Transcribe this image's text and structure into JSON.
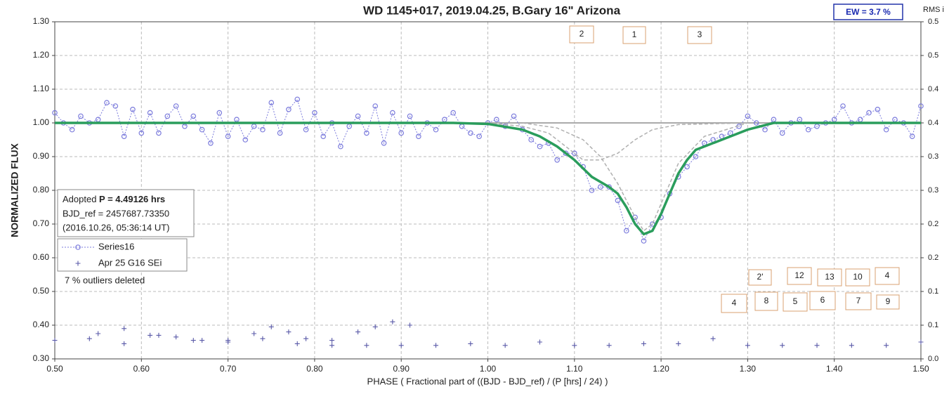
{
  "chart_data": {
    "type": "scatter",
    "title": "WD 1145+017, 2019.04.25, B.Gary 16\" Arizona",
    "ew_label": "EW =  3.7 %",
    "y2_title": "RMS i",
    "x_label": "PHASE ( Fractional part of ((BJD - BJD_ref) / (P [hrs] / 24) )",
    "y_label": "NORMALIZED FLUX",
    "info": {
      "prefix": "Adopted ",
      "period": "P = 4.49126 hrs",
      "bjd_ref": "BJD_ref = 2457687.73350",
      "date": "(2016.10.26, 05:36:14 UT)"
    },
    "outliers_note": "7 % outliers deleted",
    "annotations": [
      "2",
      "1",
      "3",
      "2'",
      "12",
      "13",
      "10",
      "4",
      "4",
      "8",
      "5",
      "6",
      "7",
      "9"
    ],
    "xlim": [
      0.5,
      1.5
    ],
    "ylim": [
      0.3,
      1.3
    ],
    "y2lim": [
      0,
      0.5
    ],
    "grid": true,
    "xticks": [
      {
        "value": 0.5,
        "label": "0.50"
      },
      {
        "value": 0.6,
        "label": "0.60"
      },
      {
        "value": 0.7,
        "label": "0.70"
      },
      {
        "value": 0.8,
        "label": "0.80"
      },
      {
        "value": 0.9,
        "label": "0.90"
      },
      {
        "value": 1.0,
        "label": "1.00"
      },
      {
        "value": 1.1,
        "label": "1.10"
      },
      {
        "value": 1.2,
        "label": "1.20"
      },
      {
        "value": 1.3,
        "label": "1.30"
      },
      {
        "value": 1.4,
        "label": "1.40"
      },
      {
        "value": 1.5,
        "label": "1.50"
      }
    ],
    "yticks": [
      {
        "value": 0.3,
        "label": "0.30"
      },
      {
        "value": 0.4,
        "label": "0.40"
      },
      {
        "value": 0.5,
        "label": "0.50"
      },
      {
        "value": 0.6,
        "label": "0.60"
      },
      {
        "value": 0.7,
        "label": "0.70"
      },
      {
        "value": 0.8,
        "label": "0.80"
      },
      {
        "value": 0.9,
        "label": "0.90"
      },
      {
        "value": 1.0,
        "label": "1.00"
      },
      {
        "value": 1.1,
        "label": "1.10"
      },
      {
        "value": 1.2,
        "label": "1.20"
      },
      {
        "value": 1.3,
        "label": "1.30"
      }
    ],
    "y2ticks": [
      {
        "value": 0,
        "label": "0.0"
      },
      {
        "value": 0.05,
        "label": "0.1"
      },
      0.1,
      {
        "value": 0.15,
        "label": "0.2"
      },
      0.2,
      {
        "value": 0.25,
        "label": "0.3"
      },
      0.3,
      {
        "value": 0.35,
        "label": "0.4"
      },
      0.4,
      {
        "value": 0.45,
        "label": "0.5"
      },
      0.5
    ],
    "series": [
      {
        "color": "#aaaaaa",
        "line": "solid",
        "marker": "none",
        "x": [
          0.5,
          1.5
        ],
        "values": [
          1.0,
          1.0
        ]
      },
      {
        "name": "Series16",
        "color": "#7b7bdc",
        "line": "dotted",
        "marker": "circle",
        "x": [
          0.5,
          0.51,
          0.52,
          0.53,
          0.54,
          0.55,
          0.56,
          0.57,
          0.58,
          0.59,
          0.6,
          0.61,
          0.62,
          0.63,
          0.64,
          0.65,
          0.66,
          0.67,
          0.68,
          0.69,
          0.7,
          0.71,
          0.72,
          0.73,
          0.74,
          0.75,
          0.76,
          0.77,
          0.78,
          0.79,
          0.8,
          0.81,
          0.82,
          0.83,
          0.84,
          0.85,
          0.86,
          0.87,
          0.88,
          0.89,
          0.9,
          0.91,
          0.92,
          0.93,
          0.94,
          0.95,
          0.96,
          0.97,
          0.98,
          0.99,
          1.0,
          1.01,
          1.02,
          1.03,
          1.04,
          1.05,
          1.06,
          1.07,
          1.08,
          1.09,
          1.1,
          1.11,
          1.12,
          1.13,
          1.14,
          1.15,
          1.16,
          1.17,
          1.18,
          1.19,
          1.2,
          1.21,
          1.22,
          1.23,
          1.24,
          1.25,
          1.26,
          1.27,
          1.28,
          1.29,
          1.3,
          1.31,
          1.32,
          1.33,
          1.34,
          1.35,
          1.36,
          1.37,
          1.38,
          1.39,
          1.4,
          1.41,
          1.42,
          1.43,
          1.44,
          1.45,
          1.46,
          1.47,
          1.48,
          1.49,
          1.5
        ],
        "values": [
          1.03,
          1.0,
          0.98,
          1.02,
          1.0,
          1.01,
          1.06,
          1.05,
          0.96,
          1.04,
          0.97,
          1.03,
          0.97,
          1.02,
          1.05,
          0.99,
          1.02,
          0.98,
          0.94,
          1.03,
          0.96,
          1.01,
          0.95,
          0.99,
          0.98,
          1.06,
          0.97,
          1.04,
          1.07,
          0.98,
          1.03,
          0.96,
          1.0,
          0.93,
          0.99,
          1.02,
          0.97,
          1.05,
          0.94,
          1.03,
          0.97,
          1.02,
          0.96,
          1.0,
          0.98,
          1.01,
          1.03,
          0.99,
          0.97,
          0.96,
          1.0,
          1.01,
          0.99,
          1.02,
          0.98,
          0.95,
          0.93,
          0.94,
          0.89,
          0.91,
          0.91,
          0.87,
          0.8,
          0.81,
          0.81,
          0.77,
          0.68,
          0.72,
          0.65,
          0.7,
          0.72,
          0.79,
          0.84,
          0.87,
          0.9,
          0.94,
          0.95,
          0.96,
          0.97,
          0.99,
          1.02,
          1.0,
          0.98,
          1.01,
          0.97,
          1.0,
          1.01,
          0.98,
          0.99,
          1.0,
          1.01,
          1.05,
          1.0,
          1.01,
          1.03,
          1.04,
          0.98,
          1.01,
          1.0,
          0.96,
          1.05
        ]
      },
      {
        "color": "#b0b0b0",
        "line": "dashed",
        "marker": "none",
        "x": [
          1.0,
          1.04,
          1.07,
          1.09,
          1.11,
          1.13,
          1.15,
          1.17,
          1.19,
          1.22,
          1.3
        ],
        "values": [
          1.0,
          0.99,
          0.97,
          0.93,
          0.89,
          0.89,
          0.91,
          0.95,
          0.98,
          0.995,
          1.0
        ]
      },
      {
        "color": "#b0b0b0",
        "line": "dashed",
        "marker": "none",
        "x": [
          1.04,
          1.08,
          1.11,
          1.13,
          1.15,
          1.17,
          1.18,
          1.19,
          1.2,
          1.22,
          1.25,
          1.3
        ],
        "values": [
          1.0,
          0.985,
          0.95,
          0.9,
          0.82,
          0.72,
          0.68,
          0.7,
          0.76,
          0.88,
          0.96,
          1.0
        ]
      },
      {
        "color": "#2a9d5c",
        "line": "thick",
        "marker": "none",
        "x": [
          0.5,
          0.96,
          1.0,
          1.04,
          1.06,
          1.08,
          1.1,
          1.12,
          1.14,
          1.15,
          1.16,
          1.17,
          1.18,
          1.19,
          1.2,
          1.21,
          1.22,
          1.23,
          1.24,
          1.26,
          1.28,
          1.3,
          1.33,
          1.5
        ],
        "values": [
          1.0,
          1.0,
          0.997,
          0.98,
          0.96,
          0.93,
          0.89,
          0.84,
          0.81,
          0.79,
          0.75,
          0.7,
          0.67,
          0.68,
          0.73,
          0.79,
          0.85,
          0.89,
          0.92,
          0.94,
          0.96,
          0.98,
          1.0,
          1.0
        ]
      },
      {
        "name": "Apr 25 G16 SEi",
        "color": "#5a5aa8",
        "line": "none",
        "marker": "plus",
        "x": [
          0.5,
          0.54,
          0.58,
          0.62,
          0.66,
          0.7,
          0.74,
          0.78,
          0.82,
          0.86,
          0.9,
          0.94,
          0.98,
          1.02,
          1.06,
          1.1,
          1.14,
          1.18,
          1.22,
          1.26,
          1.3,
          1.34,
          1.38,
          1.42,
          1.46,
          1.5,
          0.55,
          0.58,
          0.61,
          0.64,
          0.67,
          0.7,
          0.73,
          0.75,
          0.77,
          0.79,
          0.82,
          0.85,
          0.87,
          0.89,
          0.91
        ],
        "values": [
          0.355,
          0.36,
          0.345,
          0.37,
          0.355,
          0.35,
          0.36,
          0.345,
          0.34,
          0.34,
          0.34,
          0.34,
          0.345,
          0.34,
          0.35,
          0.34,
          0.34,
          0.345,
          0.345,
          0.36,
          0.34,
          0.34,
          0.34,
          0.34,
          0.34,
          0.35,
          0.375,
          0.39,
          0.37,
          0.365,
          0.355,
          0.355,
          0.375,
          0.395,
          0.38,
          0.36,
          0.355,
          0.38,
          0.395,
          0.41,
          0.4
        ]
      }
    ]
  }
}
